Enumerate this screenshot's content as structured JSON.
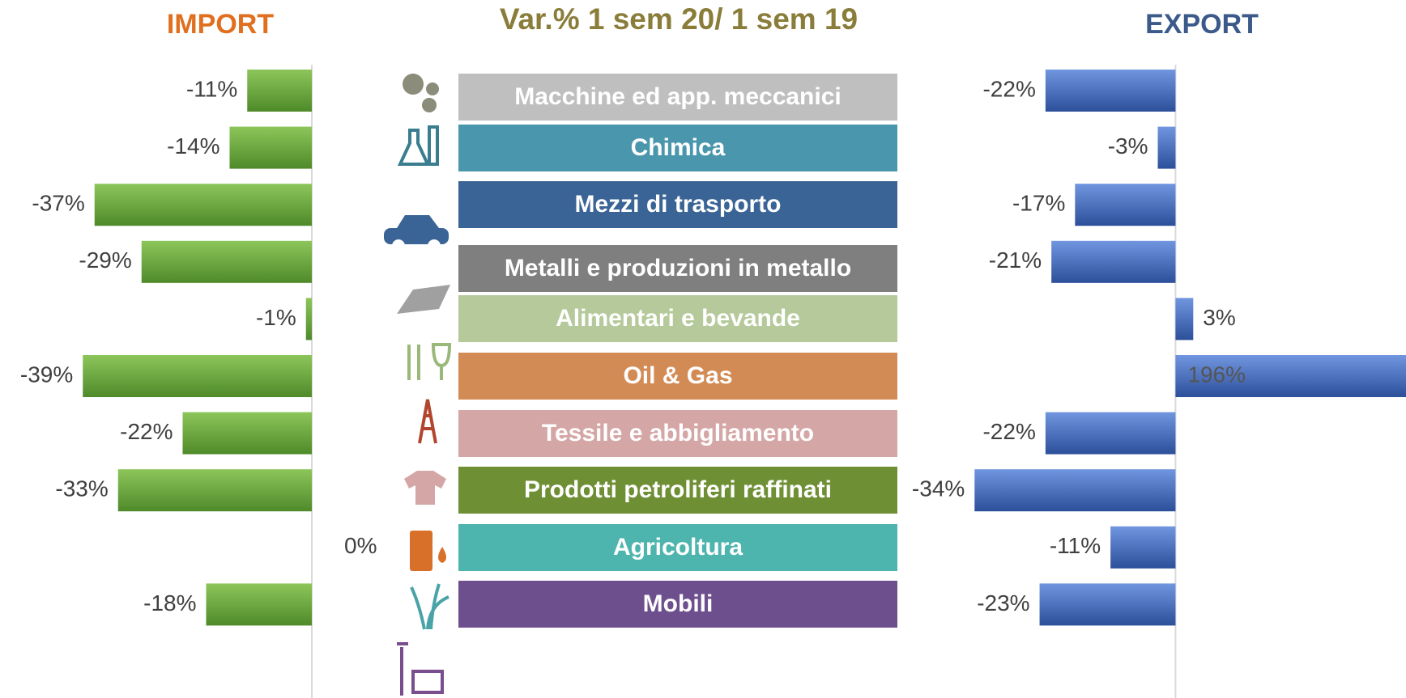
{
  "chart_data": {
    "type": "butterfly",
    "title": "Var.% 1 sem 20/ 1 sem 19",
    "categories": [
      "Macchine ed app. meccanici",
      "Chimica",
      "Mezzi di trasporto",
      "Metalli e produzioni in metallo",
      "Alimentari e bevande",
      "Oil & Gas",
      "Tessile e abbigliamento",
      "Prodotti petroliferi raffinati",
      "Agricoltura",
      "Mobili"
    ],
    "category_colors": [
      "#bfbfbf",
      "#4a97ad",
      "#3a6496",
      "#7f7f7f",
      "#b5c99a",
      "#d38b55",
      "#d5a6a6",
      "#6f8f35",
      "#4db5ad",
      "#6e4f8e"
    ],
    "series": [
      {
        "name": "IMPORT",
        "color": "#6aa83c",
        "name_color": "#e07020",
        "xlim": [
          -40,
          0
        ],
        "values": [
          -11,
          -14,
          -37,
          -29,
          -1,
          -39,
          -22,
          -33,
          0,
          -18
        ],
        "value_labels": [
          "-11%",
          "-14%",
          "-37%",
          "-29%",
          "-1%",
          "-39%",
          "-22%",
          "-33%",
          "0%",
          "-18%"
        ]
      },
      {
        "name": "EXPORT",
        "color": "#4a70c4",
        "name_color": "#3b5a8a",
        "xlim": [
          -35,
          39
        ],
        "values": [
          -22,
          -3,
          -17,
          -21,
          3,
          196,
          -22,
          -34,
          -11,
          -23
        ],
        "value_labels": [
          "-22%",
          "-3%",
          "-17%",
          "-21%",
          "3%",
          "196%",
          "-22%",
          "-34%",
          "-11%",
          "-23%"
        ]
      }
    ]
  }
}
